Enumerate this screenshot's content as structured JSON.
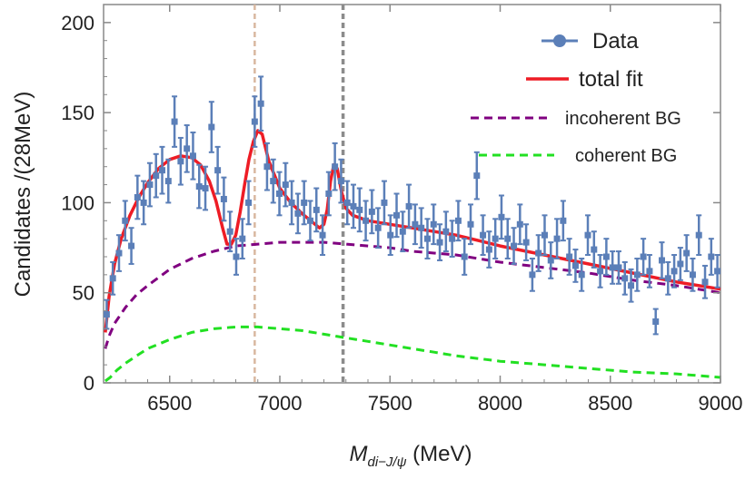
{
  "chart_data": {
    "type": "scatter",
    "title": "",
    "xlabel": {
      "symbol": "M",
      "subscript": "di−J/ψ",
      "unit": " (MeV)"
    },
    "ylabel": "Candidates /(28MeV)",
    "xlim": [
      6200,
      9000
    ],
    "ylim": [
      0,
      210
    ],
    "xticks": [
      6500,
      7000,
      7500,
      8000,
      8500,
      9000
    ],
    "yticks": [
      0,
      50,
      100,
      150,
      200
    ],
    "grid": false,
    "legend_position": "top-right",
    "vertical_lines": [
      {
        "x": 6886,
        "color": "#d9b8a0"
      },
      {
        "x": 7287,
        "color": "#8c8c8c"
      }
    ],
    "series": [
      {
        "name": "Data",
        "kind": "points-with-errors",
        "color": "#5b7fb8",
        "x": [
          6214,
          6242,
          6270,
          6298,
          6326,
          6354,
          6382,
          6410,
          6438,
          6466,
          6494,
          6522,
          6550,
          6578,
          6606,
          6634,
          6662,
          6690,
          6718,
          6746,
          6774,
          6802,
          6830,
          6858,
          6886,
          6914,
          6942,
          6970,
          6998,
          7026,
          7054,
          7082,
          7110,
          7138,
          7166,
          7194,
          7222,
          7250,
          7278,
          7306,
          7334,
          7362,
          7390,
          7418,
          7446,
          7474,
          7502,
          7530,
          7558,
          7586,
          7614,
          7642,
          7670,
          7698,
          7726,
          7754,
          7782,
          7810,
          7838,
          7866,
          7894,
          7922,
          7950,
          7978,
          8006,
          8034,
          8062,
          8090,
          8118,
          8146,
          8174,
          8202,
          8230,
          8258,
          8286,
          8314,
          8342,
          8370,
          8398,
          8426,
          8454,
          8482,
          8510,
          8538,
          8566,
          8594,
          8622,
          8650,
          8678,
          8706,
          8734,
          8762,
          8790,
          8818,
          8846,
          8874,
          8902,
          8930,
          8958,
          8986
        ],
        "y": [
          38,
          58,
          72,
          90,
          76,
          103,
          100,
          110,
          115,
          118,
          112,
          145,
          123,
          130,
          126,
          109,
          108,
          142,
          118,
          102,
          84,
          70,
          80,
          100,
          145,
          155,
          120,
          112,
          105,
          110,
          100,
          94,
          100,
          90,
          96,
          82,
          105,
          120,
          112,
          100,
          98,
          96,
          90,
          95,
          86,
          100,
          82,
          93,
          84,
          98,
          88,
          86,
          80,
          88,
          78,
          84,
          80,
          90,
          70,
          88,
          115,
          82,
          74,
          80,
          92,
          80,
          76,
          88,
          78,
          60,
          72,
          82,
          68,
          80,
          90,
          70,
          65,
          60,
          82,
          74,
          62,
          70,
          64,
          64,
          58,
          54,
          60,
          70,
          62,
          34,
          68,
          58,
          62,
          66,
          72,
          60,
          82,
          56,
          70,
          62
        ],
        "err": [
          8,
          9,
          10,
          11,
          10,
          12,
          12,
          12,
          12,
          13,
          12,
          14,
          13,
          13,
          13,
          12,
          12,
          14,
          13,
          12,
          11,
          10,
          11,
          12,
          14,
          15,
          13,
          12,
          12,
          12,
          12,
          11,
          12,
          11,
          12,
          11,
          12,
          13,
          12,
          12,
          12,
          12,
          11,
          12,
          11,
          12,
          11,
          12,
          11,
          12,
          11,
          11,
          11,
          11,
          10,
          11,
          10,
          11,
          10,
          11,
          13,
          11,
          10,
          11,
          12,
          11,
          10,
          11,
          10,
          9,
          10,
          11,
          10,
          11,
          11,
          10,
          9,
          9,
          11,
          10,
          9,
          10,
          9,
          9,
          9,
          9,
          9,
          10,
          9,
          7,
          10,
          9,
          9,
          9,
          10,
          9,
          11,
          9,
          10,
          9
        ]
      },
      {
        "name": "total fit",
        "kind": "line",
        "color": "#ee1c25",
        "x": [
          6208,
          6225,
          6250,
          6280,
          6320,
          6360,
          6400,
          6450,
          6500,
          6550,
          6600,
          6640,
          6680,
          6710,
          6740,
          6760,
          6780,
          6800,
          6820,
          6840,
          6860,
          6880,
          6900,
          6920,
          6950,
          7000,
          7050,
          7100,
          7150,
          7180,
          7200,
          7215,
          7230,
          7245,
          7260,
          7280,
          7300,
          7330,
          7400,
          7500,
          7600,
          7700,
          7800,
          7900,
          8000,
          8200,
          8400,
          8600,
          8800,
          9000
        ],
        "y": [
          28,
          48,
          66,
          80,
          93,
          103,
          111,
          119,
          124,
          126,
          125,
          121,
          112,
          101,
          86,
          77,
          77,
          82,
          95,
          110,
          124,
          134,
          140,
          138,
          123,
          108,
          100,
          94,
          89,
          86,
          88,
          96,
          112,
          121,
          119,
          106,
          97,
          93,
          90,
          88,
          86,
          84,
          82,
          79,
          76,
          71,
          66,
          61,
          56,
          52
        ]
      },
      {
        "name": "incoherent BG",
        "kind": "dashed-line",
        "color": "#800080",
        "x": [
          6208,
          6225,
          6250,
          6300,
          6350,
          6400,
          6500,
          6600,
          6700,
          6800,
          6900,
          7000,
          7100,
          7200,
          7300,
          7400,
          7500,
          7600,
          7700,
          7800,
          8000,
          8200,
          8400,
          8600,
          8800,
          9000
        ],
        "y": [
          19,
          26,
          33,
          42,
          49,
          54,
          63,
          69,
          73,
          76,
          77,
          78,
          78,
          78,
          77,
          76,
          75,
          73,
          72,
          71,
          67,
          64,
          61,
          57,
          54,
          50
        ]
      },
      {
        "name": "coherent BG",
        "kind": "dashed-line",
        "color": "#22e022",
        "x": [
          6208,
          6230,
          6260,
          6300,
          6350,
          6400,
          6500,
          6600,
          6700,
          6800,
          6900,
          7000,
          7100,
          7200,
          7300,
          7400,
          7500,
          7600,
          7700,
          7800,
          8000,
          8200,
          8400,
          8600,
          8800,
          9000
        ],
        "y": [
          1,
          3,
          7,
          11,
          15,
          19,
          24,
          28,
          30,
          31,
          31,
          30,
          29,
          27,
          25,
          23,
          21,
          19,
          17,
          15,
          12,
          10,
          8,
          6,
          5,
          3
        ]
      }
    ]
  },
  "legend": {
    "items": [
      {
        "label": "Data",
        "color": "#5b7fb8",
        "marker": "dot-line"
      },
      {
        "label": "total fit",
        "color": "#ee1c25",
        "marker": "solid"
      },
      {
        "label": "incoherent BG",
        "color": "#800080",
        "marker": "dashed"
      },
      {
        "label": "coherent BG",
        "color": "#22e022",
        "marker": "dashed"
      }
    ]
  }
}
